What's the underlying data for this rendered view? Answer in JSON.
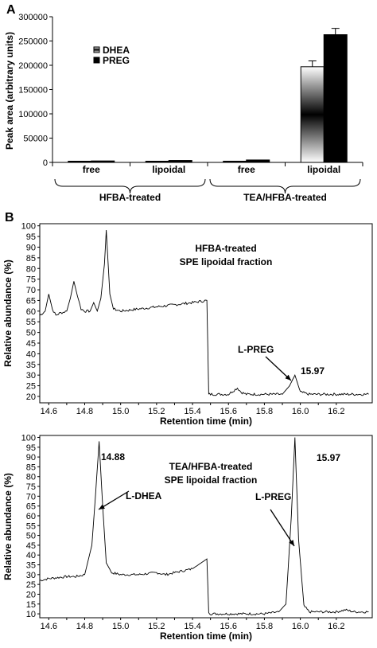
{
  "chart_data": [
    {
      "panel": "A",
      "type": "bar",
      "ylabel": "Peak area (arbitrary units)",
      "ylim": [
        0,
        300000
      ],
      "yticks": [
        "0",
        "50000",
        "100000",
        "150000",
        "200000",
        "250000",
        "300000"
      ],
      "categories": [
        "free",
        "lipoidal",
        "free",
        "lipoidal"
      ],
      "groups": [
        "HFBA-treated",
        "TEA/HFBA-treated"
      ],
      "series": [
        {
          "name": "DHEA",
          "values": [
            1500,
            2000,
            2500,
            197000
          ],
          "errors": [
            0,
            0,
            0,
            12000
          ],
          "color": "gradient"
        },
        {
          "name": "PREG",
          "values": [
            3000,
            4000,
            5000,
            263000
          ],
          "errors": [
            0,
            0,
            0,
            13000
          ],
          "color": "#000000"
        }
      ],
      "legend": "top-left"
    },
    {
      "panel": "B",
      "type": "line",
      "title": "HFBA-treated",
      "subtitle": "SPE lipoidal fraction",
      "xlabel": "Retention time (min)",
      "ylabel": "Relative abundance (%)",
      "xlim": [
        14.55,
        16.4
      ],
      "ylim": [
        17,
        101
      ],
      "xticks": [
        "14.6",
        "14.7",
        "14.8",
        "14.9",
        "15.0",
        "15.1",
        "15.2",
        "15.3",
        "15.4",
        "15.5",
        "15.6",
        "15.7",
        "15.8",
        "15.9",
        "16.0",
        "16.1",
        "16.2"
      ],
      "yticks": [
        "20",
        "25",
        "30",
        "35",
        "40",
        "45",
        "50",
        "55",
        "60",
        "65",
        "70",
        "75",
        "80",
        "85",
        "90",
        "95",
        "100"
      ],
      "x": [
        14.55,
        14.58,
        14.6,
        14.62,
        14.64,
        14.66,
        14.7,
        14.72,
        14.74,
        14.76,
        14.78,
        14.8,
        14.83,
        14.85,
        14.87,
        14.89,
        14.91,
        14.92,
        14.94,
        14.96,
        15.0,
        15.1,
        15.2,
        15.3,
        15.4,
        15.48,
        15.49,
        15.5,
        15.6,
        15.65,
        15.67,
        15.7,
        15.8,
        15.9,
        15.94,
        15.97,
        16.0,
        16.05,
        16.1,
        16.2,
        16.3,
        16.38
      ],
      "y": [
        58,
        60,
        68,
        61,
        58,
        59,
        60,
        66,
        74,
        67,
        61,
        60,
        60,
        64,
        60,
        66,
        82,
        98,
        68,
        61,
        60,
        61,
        62,
        63,
        64,
        65,
        21,
        21,
        21,
        24,
        22,
        21,
        21,
        21,
        25,
        30,
        22,
        21,
        21,
        21,
        21,
        21
      ],
      "annotations": [
        {
          "text": "L-PREG",
          "x": 15.97
        },
        {
          "text": "15.97",
          "x": 15.97
        }
      ]
    },
    {
      "panel": "B",
      "type": "line",
      "title": "TEA/HFBA-treated",
      "subtitle": "SPE lipoidal fraction",
      "xlabel": "Retention time (min)",
      "ylabel": "Relative abundance (%)",
      "xlim": [
        14.55,
        16.4
      ],
      "ylim": [
        8,
        101
      ],
      "xticks": [
        "14.6",
        "14.7",
        "14.8",
        "14.9",
        "15.0",
        "15.1",
        "15.2",
        "15.3",
        "15.4",
        "15.5",
        "15.6",
        "15.7",
        "15.8",
        "15.9",
        "16.0",
        "16.1",
        "16.2"
      ],
      "yticks": [
        "10",
        "15",
        "20",
        "25",
        "30",
        "35",
        "40",
        "45",
        "50",
        "55",
        "60",
        "65",
        "70",
        "75",
        "80",
        "85",
        "90",
        "95",
        "100"
      ],
      "x": [
        14.55,
        14.6,
        14.7,
        14.75,
        14.8,
        14.84,
        14.86,
        14.88,
        14.9,
        14.92,
        14.95,
        15.0,
        15.1,
        15.2,
        15.25,
        15.3,
        15.4,
        15.48,
        15.49,
        15.5,
        15.6,
        15.7,
        15.8,
        15.88,
        15.92,
        15.95,
        15.97,
        15.99,
        16.02,
        16.05,
        16.1,
        16.2,
        16.25,
        16.3,
        16.38
      ],
      "y": [
        27,
        28,
        29,
        29,
        30,
        45,
        70,
        98,
        65,
        36,
        31,
        30,
        30,
        31,
        30,
        31,
        33,
        38,
        11,
        10,
        10,
        10,
        10,
        11,
        15,
        60,
        100,
        48,
        14,
        11,
        11,
        11,
        12,
        11,
        11
      ],
      "annotations": [
        {
          "text": "L-DHEA",
          "x": 14.88
        },
        {
          "text": "14.88",
          "x": 14.88
        },
        {
          "text": "L-PREG",
          "x": 15.97
        },
        {
          "text": "15.97",
          "x": 15.97
        }
      ]
    }
  ]
}
